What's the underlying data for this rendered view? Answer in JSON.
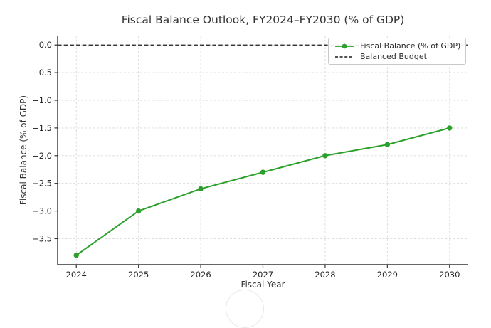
{
  "figure": {
    "title": "Fiscal Balance Outlook, FY2024–FY2030 (% of GDP)",
    "xlabel": "Fiscal Year",
    "ylabel": "Fiscal Balance (% of GDP)"
  },
  "legend": {
    "series_label": "Fiscal Balance (% of GDP)",
    "baseline_label": "Balanced Budget"
  },
  "colors": {
    "series_green": "#2ca02c",
    "baseline_black": "#1a1a1a",
    "grid_gray": "#d9d9d9",
    "spine_gray": "#333333",
    "text_dark": "#262626",
    "legend_border": "#c9c9c9"
  },
  "chart_data": {
    "type": "line",
    "title": "Fiscal Balance Outlook, FY2024–FY2030 (% of GDP)",
    "xlabel": "Fiscal Year",
    "ylabel": "Fiscal Balance (% of GDP)",
    "x": [
      2024,
      2025,
      2026,
      2027,
      2028,
      2029,
      2030
    ],
    "series": [
      {
        "name": "Fiscal Balance (% of GDP)",
        "values": [
          -3.8,
          -3.0,
          -2.6,
          -2.3,
          -2.0,
          -1.8,
          -1.5
        ],
        "color": "#2ca02c",
        "marker": "circle"
      }
    ],
    "reference_lines": [
      {
        "name": "Balanced Budget",
        "y": 0.0,
        "style": "dashed",
        "color": "#1a1a1a"
      }
    ],
    "xlim": [
      2023.7,
      2030.3
    ],
    "ylim": [
      -3.97,
      0.17
    ],
    "x_tick_values": [
      2024,
      2025,
      2026,
      2027,
      2028,
      2029,
      2030
    ],
    "x_tick_labels": [
      "2024",
      "2025",
      "2026",
      "2027",
      "2028",
      "2029",
      "2030"
    ],
    "y_tick_values": [
      0.0,
      -0.5,
      -1.0,
      -1.5,
      -2.0,
      -2.5,
      -3.0,
      -3.5
    ],
    "y_tick_labels": [
      "0.0",
      "−0.5",
      "−1.0",
      "−1.5",
      "−2.0",
      "−2.5",
      "−3.0",
      "−3.5"
    ],
    "grid": true,
    "legend_position": "upper right"
  }
}
